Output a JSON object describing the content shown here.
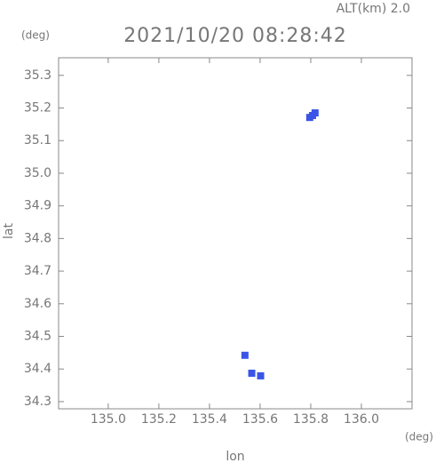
{
  "chart_data": {
    "type": "scatter",
    "title": "2021/10/20 08:28:42",
    "subtitle": "ALT(km) 2.0",
    "x_label": "lon",
    "y_label": "lat",
    "x_unit": "(deg)",
    "y_unit": "(deg)",
    "x": [
      135.817,
      135.796,
      135.807,
      135.54,
      135.567,
      135.602
    ],
    "y": [
      35.185,
      35.171,
      35.177,
      34.442,
      34.387,
      34.379
    ],
    "color": "#3a55e6",
    "xlim": [
      134.804,
      136.2
    ],
    "ylim": [
      34.278,
      35.354
    ],
    "xticks": [
      {
        "value": 135.0,
        "label": "135.0"
      },
      135.2,
      135.4,
      135.6,
      135.8,
      {
        "value": 136.0,
        "label": "136.0"
      }
    ],
    "yticks": [
      34.3,
      34.4,
      34.5,
      34.6,
      34.7,
      34.8,
      34.9,
      {
        "value": 35.0,
        "label": "35.0"
      },
      35.1,
      35.2,
      35.3
    ]
  }
}
